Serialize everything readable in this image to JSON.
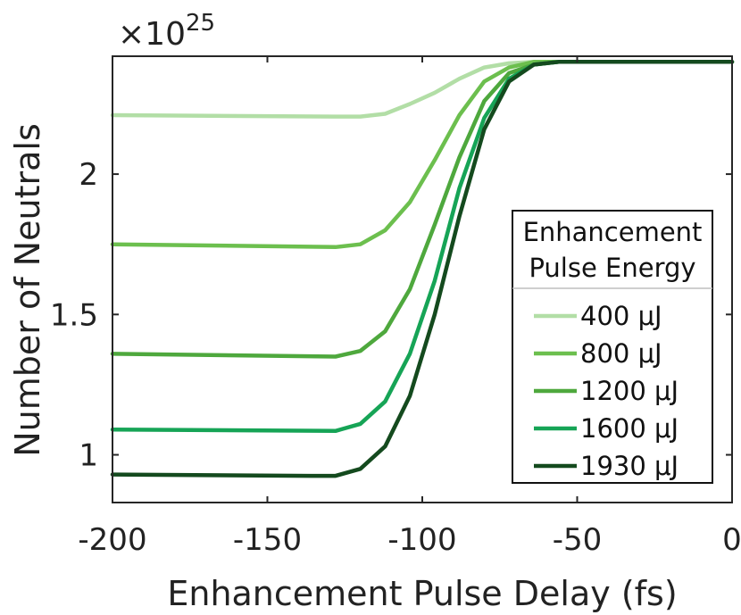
{
  "chart_data": {
    "type": "line",
    "xlabel": "Enhancement Pulse Delay (fs)",
    "ylabel": "Number of Neutrals",
    "y_exponent_base": "×10",
    "y_exponent_power": "25",
    "xlim": [
      -200,
      0
    ],
    "ylim": [
      0.83,
      2.42
    ],
    "x_ticks": [
      -200,
      -150,
      -100,
      -50,
      0
    ],
    "x_tick_labels": [
      "-200",
      "-150",
      "-100",
      "-50",
      "0"
    ],
    "y_ticks": [
      1,
      1.5,
      2
    ],
    "y_tick_labels": [
      "1",
      "1.5",
      "2"
    ],
    "grid": false,
    "legend": {
      "title_line1": "Enhancement",
      "title_line2": "Pulse Energy",
      "placement": "bottom-right"
    },
    "series": [
      {
        "name": "400 μJ",
        "color": "#b2dea6",
        "x": [
          -200,
          -128,
          -120,
          -112,
          -104,
          -96,
          -88,
          -80,
          -72,
          -64,
          -56,
          -50,
          0
        ],
        "y": [
          2.21,
          2.205,
          2.205,
          2.215,
          2.25,
          2.29,
          2.34,
          2.38,
          2.395,
          2.4,
          2.4,
          2.4,
          2.4
        ]
      },
      {
        "name": "800 μJ",
        "color": "#6cbf4e",
        "x": [
          -200,
          -128,
          -120,
          -112,
          -104,
          -96,
          -88,
          -80,
          -72,
          -64,
          -56,
          -50,
          0
        ],
        "y": [
          1.75,
          1.74,
          1.75,
          1.8,
          1.9,
          2.05,
          2.21,
          2.33,
          2.38,
          2.4,
          2.4,
          2.4,
          2.4
        ]
      },
      {
        "name": "1200 μJ",
        "color": "#4ea83d",
        "x": [
          -200,
          -128,
          -120,
          -112,
          -104,
          -96,
          -88,
          -80,
          -72,
          -64,
          -56,
          -50,
          0
        ],
        "y": [
          1.36,
          1.35,
          1.37,
          1.44,
          1.59,
          1.82,
          2.06,
          2.26,
          2.36,
          2.39,
          2.4,
          2.4,
          2.4
        ]
      },
      {
        "name": "1600 μJ",
        "color": "#16a456",
        "x": [
          -200,
          -128,
          -120,
          -112,
          -104,
          -96,
          -88,
          -80,
          -72,
          -64,
          -56,
          -50,
          0
        ],
        "y": [
          1.09,
          1.085,
          1.11,
          1.19,
          1.36,
          1.62,
          1.95,
          2.2,
          2.34,
          2.39,
          2.4,
          2.4,
          2.4
        ]
      },
      {
        "name": "1930 μJ",
        "color": "#144a1e",
        "x": [
          -200,
          -136,
          -128,
          -120,
          -112,
          -104,
          -96,
          -88,
          -80,
          -72,
          -64,
          -56,
          -50,
          0
        ],
        "y": [
          0.93,
          0.925,
          0.925,
          0.95,
          1.03,
          1.21,
          1.5,
          1.85,
          2.16,
          2.33,
          2.39,
          2.4,
          2.4,
          2.4
        ]
      }
    ]
  }
}
